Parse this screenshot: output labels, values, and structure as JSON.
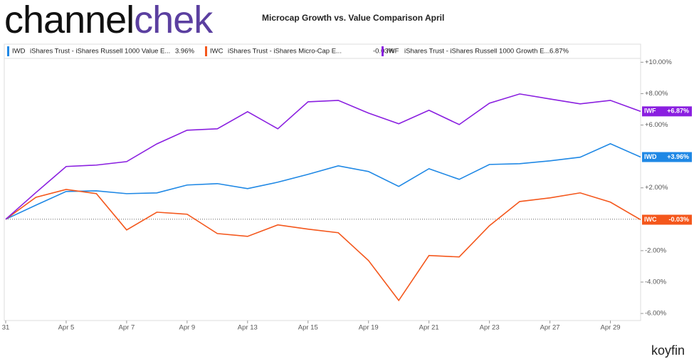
{
  "brand": {
    "part1": "channel",
    "part2": "chek"
  },
  "footer": "koyfin",
  "chart_data": {
    "type": "line",
    "title": "Microcap Growth vs. Value Comparison April",
    "categories": [
      "31",
      null,
      "Apr 5",
      null,
      "Apr 7",
      null,
      "Apr 9",
      null,
      "Apr 13",
      null,
      "Apr 15",
      null,
      "Apr 19",
      null,
      "Apr 21",
      null,
      "Apr 23",
      null,
      "Apr 27",
      null,
      "Apr 29",
      null
    ],
    "series": [
      {
        "name": "IWD",
        "description": "iShares Trust - iShares Russell 1000 Value E...",
        "legend_value": "3.96%",
        "end_label": "+3.96%",
        "color": "#1f88e5",
        "values": [
          0,
          0.9,
          1.77,
          1.81,
          1.63,
          1.68,
          2.18,
          2.27,
          1.95,
          2.36,
          2.86,
          3.4,
          3.04,
          2.09,
          3.22,
          2.54,
          3.49,
          3.54,
          3.72,
          3.95,
          4.81,
          3.96
        ]
      },
      {
        "name": "IWC",
        "description": "iShares Trust - iShares Micro-Cap E...",
        "legend_value": "-0.03%",
        "end_label": "-0.03%",
        "color": "#f4571c",
        "values": [
          0,
          1.4,
          1.9,
          1.63,
          -0.68,
          0.45,
          0.32,
          -0.91,
          -1.09,
          -0.36,
          -0.63,
          -0.86,
          -2.63,
          -5.17,
          -2.31,
          -2.4,
          -0.41,
          1.13,
          1.36,
          1.68,
          1.09,
          -0.03
        ]
      },
      {
        "name": "IWF",
        "description": "iShares Trust - iShares Russell 1000 Growth E...",
        "legend_value": "6.87%",
        "end_label": "+6.87%",
        "color": "#8a1fe0",
        "values": [
          0,
          1.7,
          3.36,
          3.45,
          3.67,
          4.8,
          5.67,
          5.76,
          6.85,
          5.76,
          7.48,
          7.57,
          6.76,
          6.08,
          6.94,
          6.03,
          7.39,
          7.98,
          7.66,
          7.35,
          7.57,
          6.87
        ]
      }
    ],
    "ylim": [
      -6.45,
      11.15
    ],
    "yticks": [
      {
        "value": 10,
        "label": "+10.00%"
      },
      {
        "value": 8,
        "label": "+8.00%"
      },
      {
        "value": 6,
        "label": "+6.00%"
      },
      {
        "value": 2,
        "label": "+2.00%"
      },
      {
        "value": -2,
        "label": "-2.00%"
      },
      {
        "value": -4,
        "label": "-4.00%"
      },
      {
        "value": -6,
        "label": "-6.00%"
      }
    ]
  }
}
